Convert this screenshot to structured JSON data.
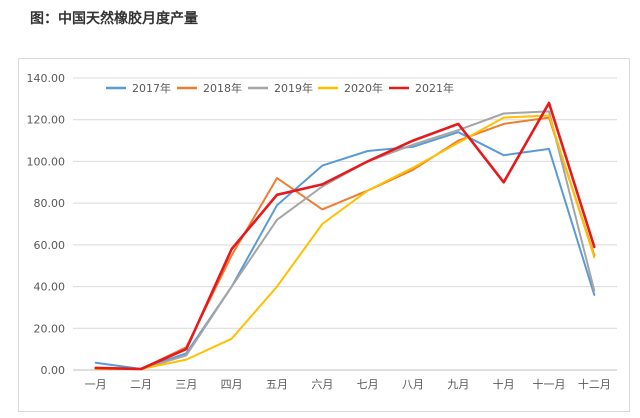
{
  "title": "图：中国天然橡胶月度产量",
  "chart_data": {
    "type": "line",
    "categories": [
      "一月",
      "二月",
      "三月",
      "四月",
      "五月",
      "六月",
      "七月",
      "八月",
      "九月",
      "十月",
      "十一月",
      "十二月"
    ],
    "ylim": [
      0,
      140
    ],
    "yticks": [
      "0.00",
      "20.00",
      "40.00",
      "60.00",
      "80.00",
      "100.00",
      "120.00",
      "140.00"
    ],
    "grid": true,
    "legend_position": "top",
    "series": [
      {
        "name": "2017年",
        "color": "#5b9bd5",
        "values": [
          3.5,
          0.5,
          8,
          40,
          79,
          98,
          105,
          107,
          114,
          103,
          106,
          36
        ]
      },
      {
        "name": "2018年",
        "color": "#ed7d31",
        "values": [
          1,
          0.5,
          11,
          55,
          92,
          77,
          86,
          96,
          110,
          118,
          121,
          55
        ]
      },
      {
        "name": "2019年",
        "color": "#a5a5a5",
        "values": [
          0.5,
          0.5,
          7,
          40,
          72,
          88,
          100,
          108,
          115,
          123,
          124,
          38
        ]
      },
      {
        "name": "2020年",
        "color": "#ffc000",
        "values": [
          0.5,
          0.5,
          5,
          15,
          40,
          70,
          86,
          97,
          109,
          121,
          122,
          54
        ]
      },
      {
        "name": "2021年",
        "color": "#e41a1c",
        "values": [
          1,
          0.5,
          10,
          58,
          84,
          89,
          100,
          110,
          118,
          90,
          128,
          59
        ]
      }
    ]
  }
}
